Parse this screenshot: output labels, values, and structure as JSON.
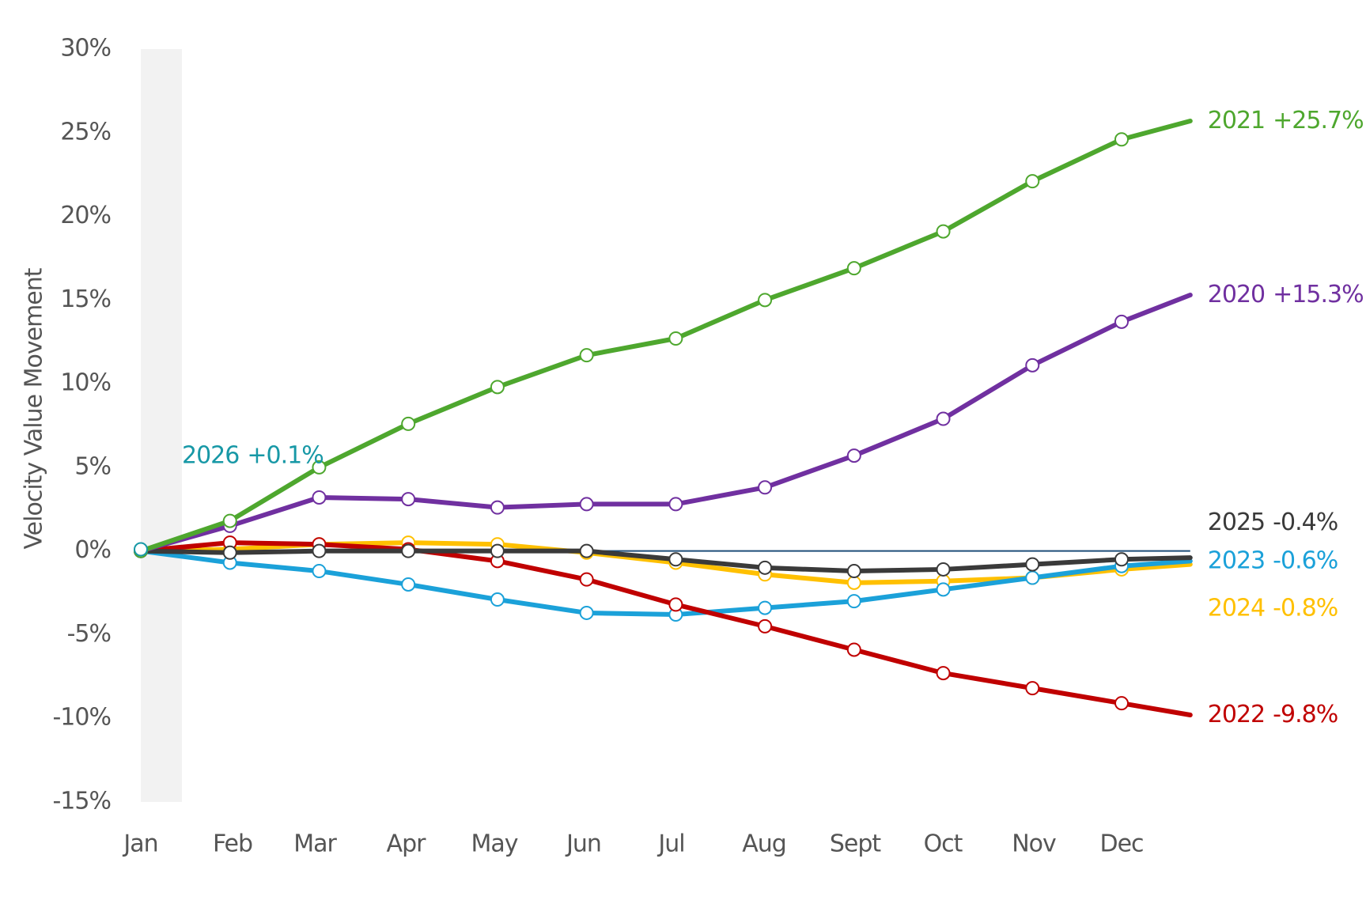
{
  "chart_data": {
    "type": "line",
    "y_label": "Velocity Value Movement",
    "categories": [
      "Jan",
      "Feb",
      "Mar",
      "Apr",
      "May",
      "Jun",
      "Jul",
      "Aug",
      "Sept",
      "Oct",
      "Nov",
      "Dec",
      null
    ],
    "ylim": [
      -15,
      30
    ],
    "yticks": [
      {
        "value": 30,
        "label": "30%"
      },
      {
        "value": 25,
        "label": "25%"
      },
      {
        "value": 20,
        "label": "20%"
      },
      {
        "value": 15,
        "label": "15%"
      },
      {
        "value": 10,
        "label": "10%"
      },
      {
        "value": 5,
        "label": "5%"
      },
      {
        "value": 0,
        "label": "0%"
      },
      {
        "value": -5,
        "label": "-5%"
      },
      {
        "value": -10,
        "label": "-10%"
      },
      {
        "value": -15,
        "label": "-15%"
      }
    ],
    "zero_line_color": "#1f4e79",
    "series": [
      {
        "name": "2024",
        "color": "#ffc000",
        "end_label": "-0.8%",
        "values": [
          0,
          0.1,
          0.4,
          0.5,
          0.4,
          -0.1,
          -0.7,
          -1.4,
          -1.9,
          -1.8,
          -1.6,
          -1.1,
          -0.8
        ]
      },
      {
        "name": "2023",
        "color": "#1ba1d9",
        "end_label": "-0.6%",
        "values": [
          0,
          -0.7,
          -1.2,
          -2.0,
          -2.9,
          -3.7,
          -3.8,
          -3.4,
          -3.0,
          -2.3,
          -1.6,
          -0.9,
          -0.6
        ]
      },
      {
        "name": "2022",
        "color": "#c00000",
        "end_label": "-9.8%",
        "values": [
          0,
          0.5,
          0.4,
          0.1,
          -0.6,
          -1.7,
          -3.2,
          -4.5,
          -5.9,
          -7.3,
          -8.2,
          -9.1,
          -9.8
        ]
      },
      {
        "name": "2025",
        "color": "#3a3a3a",
        "end_label": "-0.4%",
        "values": [
          0,
          -0.1,
          0,
          0,
          0,
          0,
          -0.5,
          -1.0,
          -1.2,
          -1.1,
          -0.8,
          -0.5,
          -0.4
        ]
      },
      {
        "name": "2020",
        "color": "#7030a0",
        "end_label": "+15.3%",
        "values": [
          0,
          1.5,
          3.2,
          3.1,
          2.6,
          2.8,
          2.8,
          3.8,
          5.7,
          7.9,
          11.1,
          13.7,
          15.3
        ]
      },
      {
        "name": "2021",
        "color": "#4ea72e",
        "end_label": "+25.7%",
        "values": [
          0,
          1.8,
          5.0,
          7.6,
          9.8,
          11.7,
          12.7,
          15.0,
          16.9,
          19.1,
          22.1,
          24.6,
          25.7
        ]
      },
      {
        "name": "2026",
        "color": "#1798a6",
        "end_label": "+0.1%",
        "values": [
          0.1,
          null,
          null,
          null,
          null,
          null,
          null,
          null,
          null,
          null,
          null,
          null,
          null
        ]
      }
    ]
  }
}
